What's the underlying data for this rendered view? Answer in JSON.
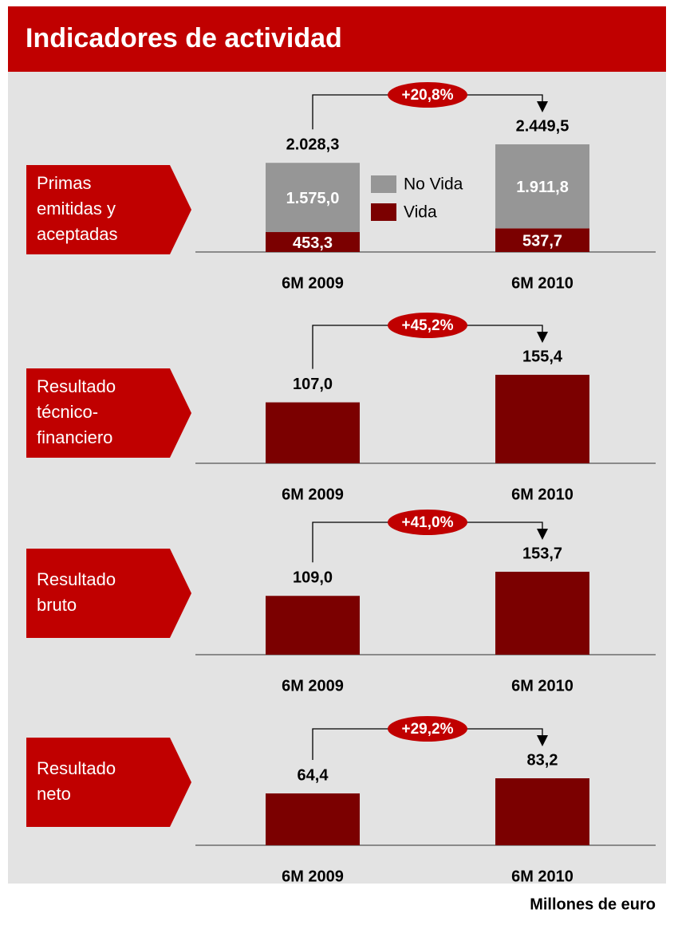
{
  "title": "Indicadores de actividad",
  "footer": "Millones de euro",
  "chart_data": [
    {
      "type": "stacked-bar",
      "label": [
        "Primas",
        "emitidas y",
        "aceptadas"
      ],
      "annotation": "+20,8%",
      "categories": [
        "6M 2009",
        "6M 2010"
      ],
      "series": [
        {
          "name": "Vida",
          "color": "#7b0000",
          "values": [
            453.3,
            537.7
          ],
          "value_labels": [
            "453,3",
            "537,7"
          ]
        },
        {
          "name": "No Vida",
          "color": "#969696",
          "values": [
            1575.0,
            1911.8
          ],
          "value_labels": [
            "1.575,0",
            "1.911,8"
          ]
        }
      ],
      "totals": {
        "values": [
          2028.3,
          2449.5
        ],
        "value_labels": [
          "2.028,3",
          "2.449,5"
        ]
      }
    },
    {
      "type": "bar",
      "label": [
        "Resultado",
        "técnico-",
        "financiero"
      ],
      "annotation": "+45,2%",
      "categories": [
        "6M 2009",
        "6M 2010"
      ],
      "color": "#7b0000",
      "values": [
        107.0,
        155.4
      ],
      "value_labels": [
        "107,0",
        "155,4"
      ]
    },
    {
      "type": "bar",
      "label": [
        "Resultado",
        "bruto"
      ],
      "annotation": "+41,0%",
      "categories": [
        "6M 2009",
        "6M 2010"
      ],
      "color": "#7b0000",
      "values": [
        109.0,
        153.7
      ],
      "value_labels": [
        "109,0",
        "153,7"
      ]
    },
    {
      "type": "bar",
      "label": [
        "Resultado",
        "neto"
      ],
      "annotation": "+29,2%",
      "categories": [
        "6M 2009",
        "6M 2010"
      ],
      "color": "#7b0000",
      "values": [
        64.4,
        83.2
      ],
      "value_labels": [
        "64,4",
        "83,2"
      ]
    }
  ]
}
